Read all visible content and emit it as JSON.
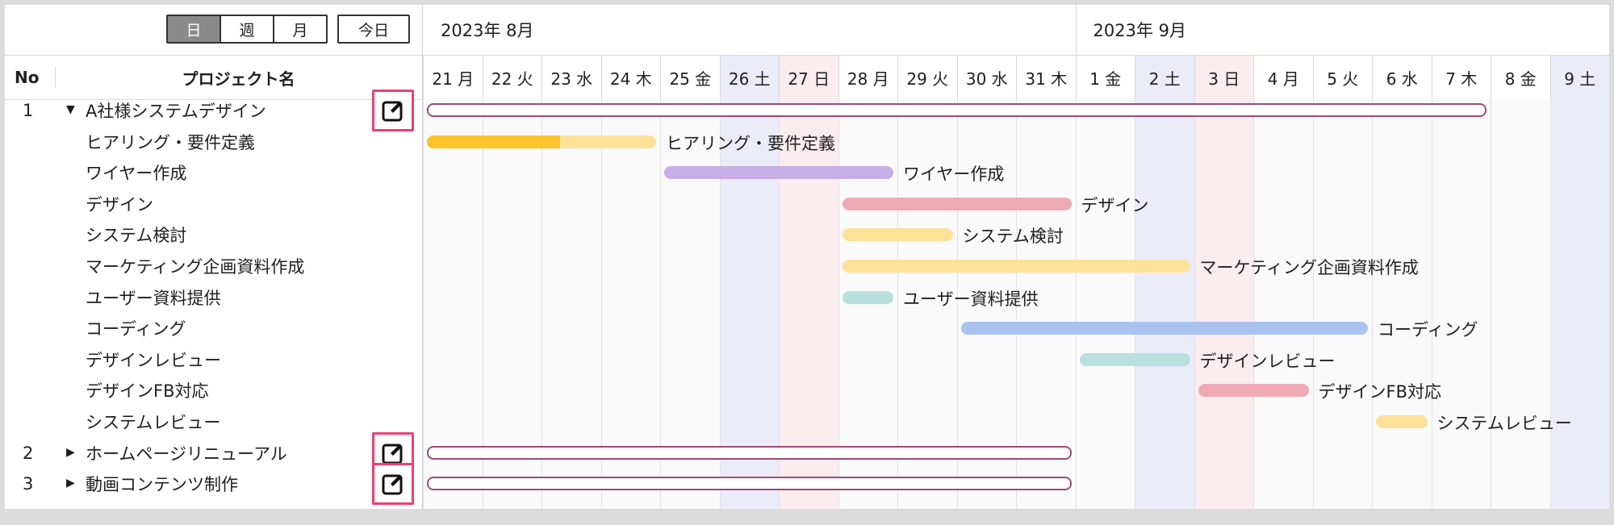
{
  "toolbar": {
    "views": [
      "日",
      "週",
      "月"
    ],
    "active_view": "日",
    "today_label": "今日"
  },
  "header": {
    "no_label": "No",
    "name_label": "プロジェクト名"
  },
  "months": [
    "2023年 8月",
    "2023年 9月"
  ],
  "days": [
    {
      "d": "21",
      "w": "月",
      "type": "weekday"
    },
    {
      "d": "22",
      "w": "火",
      "type": "weekday"
    },
    {
      "d": "23",
      "w": "水",
      "type": "weekday"
    },
    {
      "d": "24",
      "w": "木",
      "type": "weekday"
    },
    {
      "d": "25",
      "w": "金",
      "type": "weekday"
    },
    {
      "d": "26",
      "w": "土",
      "type": "sat"
    },
    {
      "d": "27",
      "w": "日",
      "type": "sun"
    },
    {
      "d": "28",
      "w": "月",
      "type": "weekday"
    },
    {
      "d": "29",
      "w": "火",
      "type": "weekday"
    },
    {
      "d": "30",
      "w": "水",
      "type": "weekday"
    },
    {
      "d": "31",
      "w": "木",
      "type": "weekday"
    },
    {
      "d": "1",
      "w": "金",
      "type": "weekday"
    },
    {
      "d": "2",
      "w": "土",
      "type": "sat"
    },
    {
      "d": "3",
      "w": "日",
      "type": "sun"
    },
    {
      "d": "4",
      "w": "月",
      "type": "weekday"
    },
    {
      "d": "5",
      "w": "火",
      "type": "weekday"
    },
    {
      "d": "6",
      "w": "水",
      "type": "weekday"
    },
    {
      "d": "7",
      "w": "木",
      "type": "weekday"
    },
    {
      "d": "8",
      "w": "金",
      "type": "weekday"
    },
    {
      "d": "9",
      "w": "土",
      "type": "sat"
    }
  ],
  "colors": {
    "sat_bg": "#ebecfa",
    "sun_bg": "#fbecee",
    "weekday_bg": "#fafafa",
    "highlight_border": "#ee3f74",
    "project_outline": "#a04a76"
  },
  "projects": [
    {
      "no": "1",
      "name": "A社様システムデザイン",
      "expanded": true,
      "toggle_icon": "triangle-down-icon",
      "edit_icon": "edit-icon",
      "range": [
        "21",
        "7"
      ]
    },
    {
      "no": "2",
      "name": "ホームページリニューアル",
      "expanded": false,
      "toggle_icon": "triangle-right-icon",
      "edit_icon": "edit-icon",
      "range": [
        "21",
        "31"
      ]
    },
    {
      "no": "3",
      "name": "動画コンテンツ制作",
      "expanded": false,
      "toggle_icon": "triangle-right-icon",
      "edit_icon": "edit-icon",
      "range": [
        "21",
        "31"
      ]
    }
  ],
  "tasks": [
    {
      "name": "ヒアリング・要件定義",
      "start": "21",
      "end": "24",
      "color": "#ffe29a",
      "progress": 0.58,
      "progress_color": "#fbc42d"
    },
    {
      "name": "ワイヤー作成",
      "start": "25",
      "end": "28",
      "color": "#c8aee6"
    },
    {
      "name": "デザイン",
      "start": "28",
      "end": "31",
      "color": "#f0aab5"
    },
    {
      "name": "システム検討",
      "start": "28",
      "end": "29",
      "color": "#ffe29a"
    },
    {
      "name": "マーケティング企画資料作成",
      "start": "28",
      "end": "2",
      "color": "#ffe29a"
    },
    {
      "name": "ユーザー資料提供",
      "start": "28",
      "end": "28",
      "color": "#b8e0dc"
    },
    {
      "name": "コーディング",
      "start": "30",
      "end": "5",
      "color": "#a9c2f0"
    },
    {
      "name": "デザインレビュー",
      "start": "1",
      "end": "2",
      "color": "#b8e0dc"
    },
    {
      "name": "デザインFB対応",
      "start": "3",
      "end": "4",
      "color": "#f0aab5"
    },
    {
      "name": "システムレビュー",
      "start": "6",
      "end": "6",
      "color": "#ffe29a"
    }
  ]
}
